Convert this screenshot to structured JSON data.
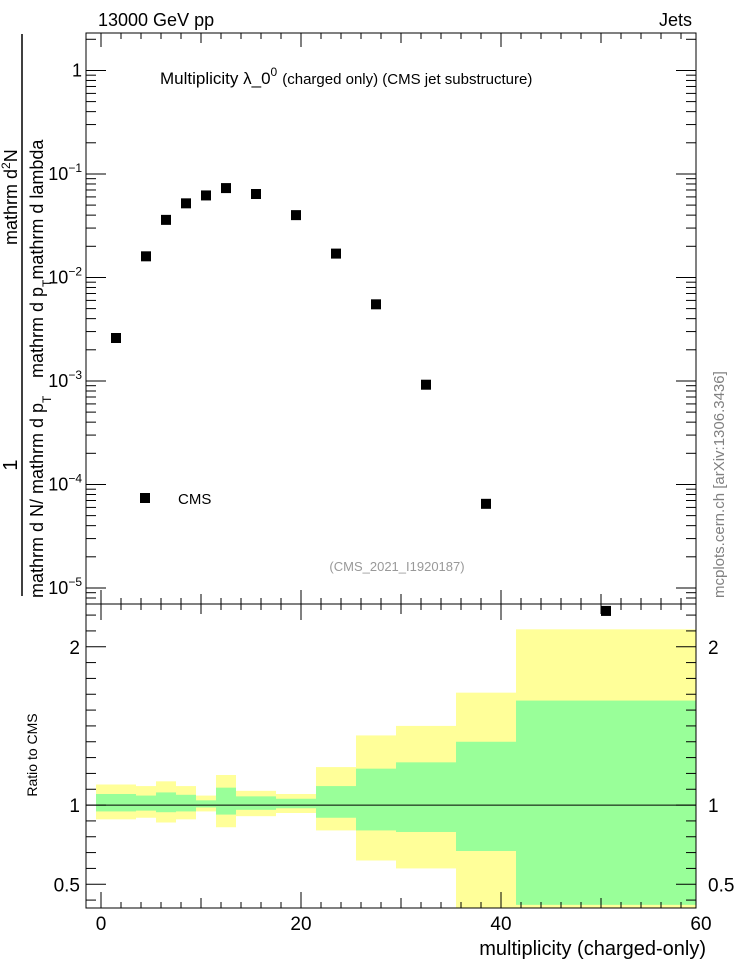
{
  "header": {
    "left": "13000 GeV pp",
    "right": "Jets"
  },
  "watermark": "mcplots.cern.ch [arXiv:1306.3436]",
  "chart_data": [
    {
      "type": "scatter",
      "panel": "main",
      "title_main": "Multiplicity  λ_0",
      "title_sup": "0",
      "title_rest": "(charged only) (CMS jet substructure)",
      "ylabel_num": "1",
      "ylabel_den_a": "mathrm d N",
      "ylabel_den_b": "/ mathrm d p",
      "ylabel_den_c": "T",
      "ylabel_num2_a": "mathrm d",
      "ylabel_num2_b": "2",
      "ylabel_num2_c": "N",
      "ylabel_den2_a": "mathrm d p",
      "ylabel_den2_b": "T",
      "ylabel_den2_c": "mathrm d lambda",
      "yscale": "log",
      "ylim": [
        7e-06,
        2.3
      ],
      "xlim": [
        -1.5,
        59.5
      ],
      "ytick_labels": [
        {
          "value": 1,
          "base": "1",
          "exp": ""
        },
        {
          "value": 0.1,
          "base": "10",
          "exp": "−1"
        },
        {
          "value": 0.01,
          "base": "10",
          "exp": "−2"
        },
        {
          "value": 0.001,
          "base": "10",
          "exp": "−3"
        },
        {
          "value": 0.0001,
          "base": "10",
          "exp": "−4"
        },
        {
          "value": 1e-05,
          "base": "10",
          "exp": "−5"
        }
      ],
      "series": [
        {
          "name": "CMS",
          "marker": "square",
          "color": "#000000",
          "x": [
            1.5,
            4.5,
            6.5,
            8.5,
            10.5,
            12.5,
            15.5,
            19.5,
            23.5,
            27.5,
            32.5,
            38.5,
            50.5
          ],
          "y": [
            0.0026,
            0.016,
            0.036,
            0.052,
            0.062,
            0.073,
            0.064,
            0.04,
            0.017,
            0.0055,
            0.00092,
            6.5e-05,
            6e-06
          ]
        }
      ],
      "legend": {
        "label": "CMS",
        "placement": "bottom-left"
      },
      "annotation": "(CMS_2021_I1920187)"
    },
    {
      "type": "area",
      "panel": "ratio",
      "ylabel": "Ratio to CMS",
      "xlabel": "multiplicity (charged-only)",
      "ylim": [
        0.35,
        2.27
      ],
      "xlim": [
        -1.5,
        59.5
      ],
      "xticks": [
        0,
        20,
        40,
        60
      ],
      "yticks": [
        0.5,
        1,
        2
      ],
      "reference_line": 1,
      "colors": {
        "outer": "#ffff99",
        "inner": "#99ff99"
      },
      "bins": [
        {
          "x0": -0.5,
          "x1": 3.5,
          "outer": [
            0.91,
            1.13
          ],
          "inner": [
            0.96,
            1.07
          ]
        },
        {
          "x0": 3.5,
          "x1": 5.5,
          "outer": [
            0.92,
            1.12
          ],
          "inner": [
            0.965,
            1.06
          ]
        },
        {
          "x0": 5.5,
          "x1": 7.5,
          "outer": [
            0.89,
            1.15
          ],
          "inner": [
            0.955,
            1.08
          ]
        },
        {
          "x0": 7.5,
          "x1": 9.5,
          "outer": [
            0.91,
            1.12
          ],
          "inner": [
            0.96,
            1.065
          ]
        },
        {
          "x0": 9.5,
          "x1": 11.5,
          "outer": [
            0.96,
            1.06
          ],
          "inner": [
            0.985,
            1.03
          ]
        },
        {
          "x0": 11.5,
          "x1": 13.5,
          "outer": [
            0.86,
            1.19
          ],
          "inner": [
            0.94,
            1.11
          ]
        },
        {
          "x0": 13.5,
          "x1": 17.5,
          "outer": [
            0.93,
            1.09
          ],
          "inner": [
            0.97,
            1.055
          ]
        },
        {
          "x0": 17.5,
          "x1": 21.5,
          "outer": [
            0.95,
            1.07
          ],
          "inner": [
            0.98,
            1.04
          ]
        },
        {
          "x0": 21.5,
          "x1": 25.5,
          "outer": [
            0.84,
            1.24
          ],
          "inner": [
            0.92,
            1.12
          ]
        },
        {
          "x0": 25.5,
          "x1": 29.5,
          "outer": [
            0.65,
            1.44
          ],
          "inner": [
            0.84,
            1.23
          ]
        },
        {
          "x0": 29.5,
          "x1": 35.5,
          "outer": [
            0.6,
            1.5
          ],
          "inner": [
            0.83,
            1.27
          ]
        },
        {
          "x0": 35.5,
          "x1": 41.5,
          "outer": [
            0.35,
            1.71
          ],
          "inner": [
            0.71,
            1.4
          ]
        },
        {
          "x0": 41.5,
          "x1": 59.5,
          "outer": [
            0.35,
            2.11
          ],
          "inner": [
            0.37,
            1.66
          ]
        }
      ]
    }
  ]
}
